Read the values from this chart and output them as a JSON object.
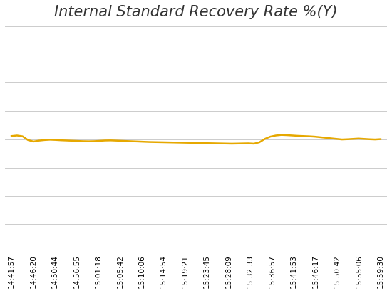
{
  "title": "Internal Standard Recovery Rate %(Y)",
  "title_fontsize": 15,
  "title_style": "italic",
  "line_color": "#E6A800",
  "line_width": 1.8,
  "background_color": "#FFFFFF",
  "grid_color": "#CCCCCC",
  "x_labels": [
    "14:41:57",
    "14:46:20",
    "14:50:44",
    "14:56:55",
    "15:01:18",
    "15:05:42",
    "15:10:06",
    "15:14:54",
    "15:19:21",
    "15:23:45",
    "15:28:09",
    "15:32:33",
    "15:36:57",
    "15:41:53",
    "15:46:17",
    "15:50:42",
    "15:55:06",
    "15:59:30"
  ],
  "y_values": [
    103,
    103.5,
    102.8,
    99.5,
    98.2,
    99.0,
    99.5,
    99.8,
    99.6,
    99.3,
    99.1,
    98.9,
    98.7,
    98.5,
    98.4,
    98.5,
    98.8,
    99.1,
    99.2,
    99.0,
    98.8,
    98.6,
    98.4,
    98.2,
    98.0,
    97.8,
    97.7,
    97.6,
    97.5,
    97.4,
    97.3,
    97.2,
    97.1,
    97.0,
    96.9,
    96.8,
    96.7,
    96.6,
    96.5,
    96.4,
    96.3,
    96.4,
    96.5,
    96.6,
    96.3,
    97.5,
    100.5,
    102.5,
    103.5,
    104.0,
    103.8,
    103.5,
    103.2,
    103.0,
    102.8,
    102.5,
    102.0,
    101.5,
    101.0,
    100.5,
    100.0,
    100.2,
    100.5,
    100.8,
    100.5,
    100.2,
    100.0,
    100.3
  ],
  "ylim": [
    0,
    200
  ],
  "ytick_interval": 20,
  "n_grid_lines": 9
}
